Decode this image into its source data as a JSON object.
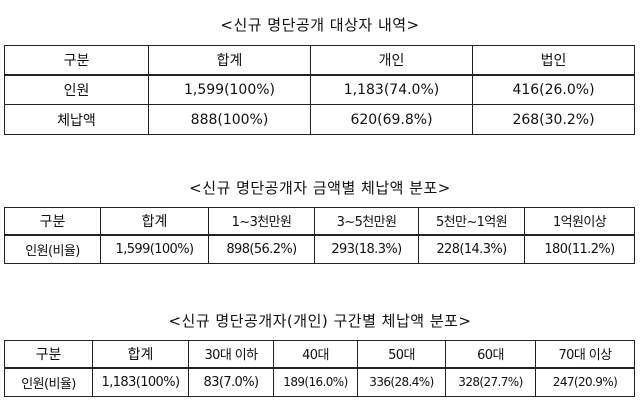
{
  "section1": {
    "title": "<신규 명단공개 대상자 내역>",
    "headers": [
      "구분",
      "합계",
      "개인",
      "법인"
    ],
    "rows": [
      [
        "인원",
        "1,599(100%)",
        "1,183(74.0%)",
        "416(26.0%)"
      ],
      [
        "체납액",
        "888(100%)",
        "620(69.8%)",
        "268(30.2%)"
      ]
    ]
  },
  "section2": {
    "title": "<신규 명단공개자 금액별 체납액 분포>",
    "headers": [
      "구분",
      "합계",
      "1~3천만원",
      "3~5천만원",
      "5천만~1억원",
      "1억원이상"
    ],
    "rows": [
      [
        "인원(비율)",
        "1,599(100%)",
        "898(56.2%)",
        "293(18.3%)",
        "228(14.3%)",
        "180(11.2%)"
      ]
    ]
  },
  "section3": {
    "title": "<신규 명단공개자(개인) 구간별 체납액 분포>",
    "headers": [
      "구분",
      "합계",
      "30대 이하",
      "40대",
      "50대",
      "60대",
      "70대 이상"
    ],
    "rows": [
      [
        "인원(비율)",
        "1,183(100%)",
        "83(7.0%)",
        "189(16.0%)",
        "336(28.4%)",
        "328(27.7%)",
        "247(20.9%)"
      ]
    ]
  }
}
